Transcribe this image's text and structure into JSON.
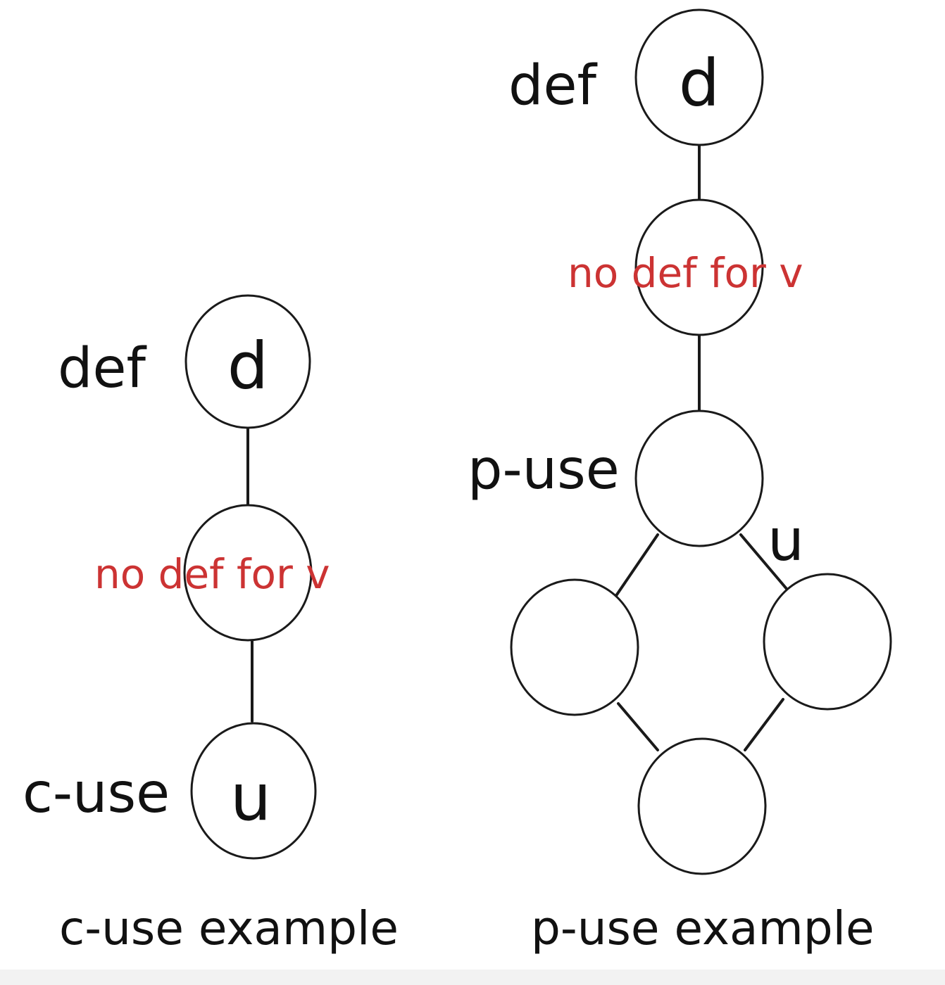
{
  "diagrams": {
    "c_use": {
      "caption": "c-use example",
      "def_label": "def",
      "def_node": "d",
      "note": "no def for v",
      "use_label": "c-use",
      "use_node": "u"
    },
    "p_use": {
      "caption": "p-use example",
      "def_label": "def",
      "def_node": "d",
      "note": "no def for v",
      "use_label": "p-use",
      "edge_label": "u"
    }
  },
  "colors": {
    "note": "#cc3333",
    "stroke": "#1a1a1a"
  }
}
